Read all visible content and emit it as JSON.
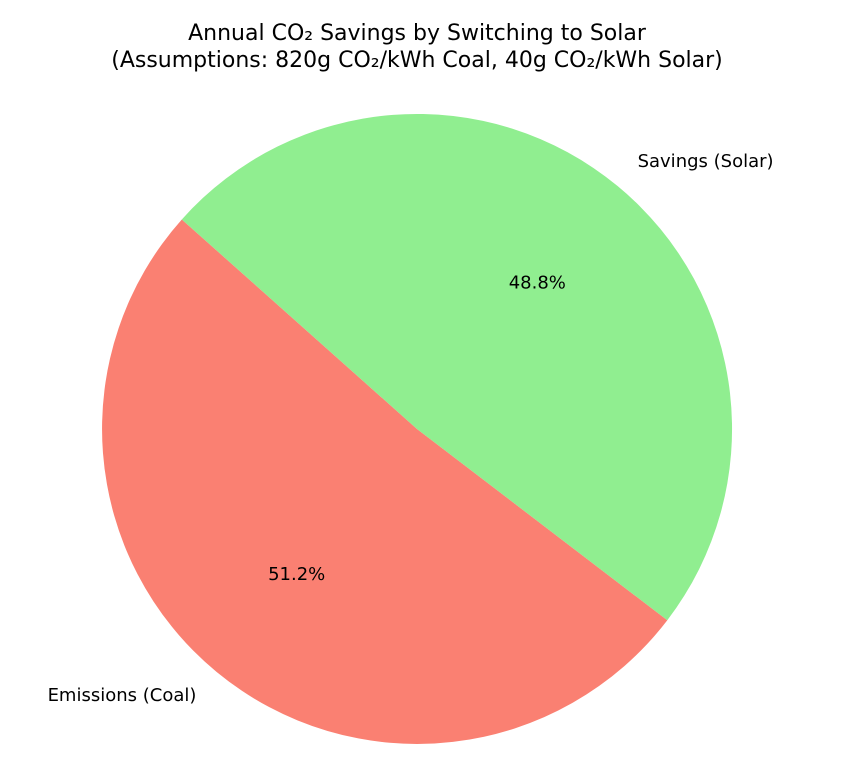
{
  "chart_data": {
    "type": "pie",
    "title": "Annual CO₂ Savings by Switching to Solar",
    "subtitle": "(Assumptions: 820g CO₂/kWh Coal, 40g CO₂/kWh Solar)",
    "slices": [
      {
        "label": "Emissions (Coal)",
        "value": 51.2,
        "pct_label": "51.2%",
        "color": "#fa8072"
      },
      {
        "label": "Savings (Solar)",
        "value": 48.8,
        "pct_label": "48.8%",
        "color": "#90ee90"
      }
    ],
    "legend": "none"
  }
}
